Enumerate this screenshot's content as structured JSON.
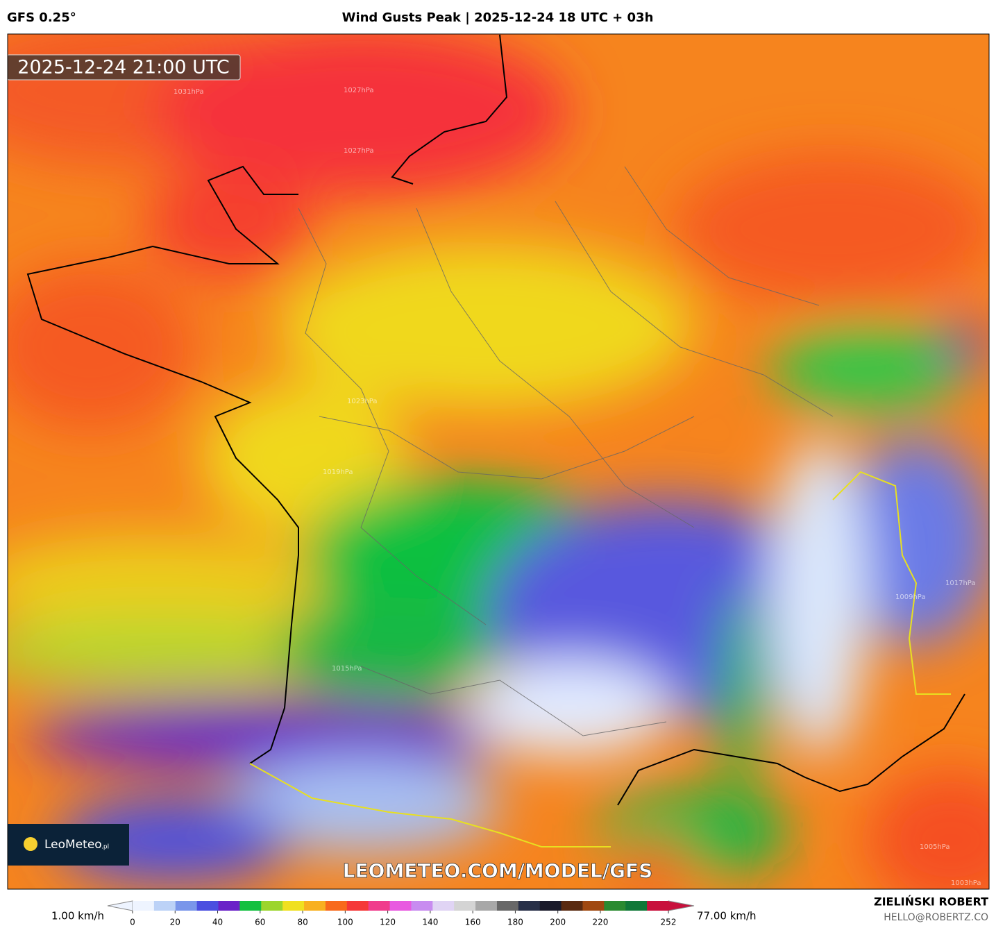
{
  "header": {
    "model": "GFS 0.25°",
    "title": "Wind Gusts Peak | 2025-12-24 18 UTC + 03h"
  },
  "map": {
    "timestamp": "2025-12-24 21:00 UTC",
    "watermark": "LEOMETEO.COM/MODEL/GFS",
    "logo": {
      "name": "LeoMeteo",
      "suffix": ".pl"
    },
    "isobar_labels": [
      "1031hPa",
      "1027hPa",
      "1027hPa",
      "1023hPa",
      "1019hPa",
      "1015hPa",
      "1017hPa",
      "1009hPa",
      "1005hPa",
      "1003hPa"
    ]
  },
  "colorbar": {
    "min_label": "1.00 km/h",
    "max_label": "77.00 km/h",
    "lim": [
      0,
      252
    ],
    "ticks": [
      0,
      20,
      40,
      60,
      80,
      100,
      120,
      140,
      160,
      180,
      200,
      220,
      252
    ],
    "colors": [
      "#eef4ff",
      "#bcd2f7",
      "#7a96ea",
      "#4b4fe0",
      "#6a22c8",
      "#14c040",
      "#9cd52c",
      "#f0e020",
      "#f8b020",
      "#f86a1c",
      "#f53838",
      "#f03c8c",
      "#e85ae0",
      "#c88cf0",
      "#e0d4f4",
      "#d4d4d4",
      "#a8a8a8",
      "#686868",
      "#283048",
      "#1a1a2a",
      "#5a2a10",
      "#a04810",
      "#2a8a30",
      "#107838",
      "#c8103c"
    ]
  },
  "footer": {
    "author": "ZIELIŃSKI ROBERT",
    "email": "HELLO@ROBERTZ.CO"
  }
}
